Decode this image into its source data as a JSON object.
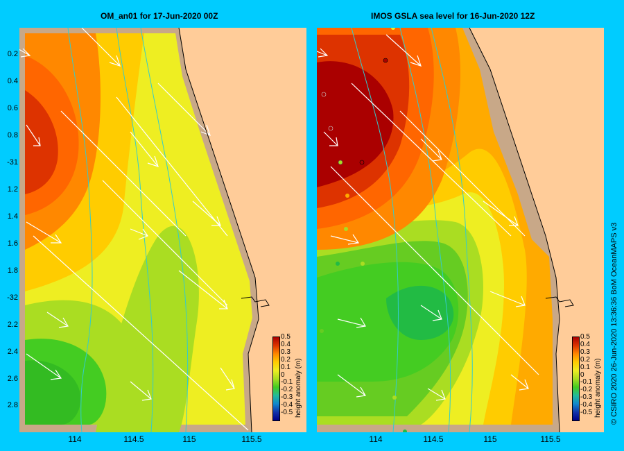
{
  "left_panel": {
    "title": "OM_an01  for 17-Jun-2020 00Z"
  },
  "right_panel": {
    "title": "IMOS  GSLA sea level   for 16-Jun-2020 12Z"
  },
  "y_axis_labels": [
    "0.2",
    "0.4",
    "0.6",
    "0.8",
    "-31",
    "1.2",
    "1.4",
    "1.6",
    "1.8",
    "-32",
    "2.2",
    "2.4",
    "2.6",
    "2.8"
  ],
  "x_axis_labels": [
    "114",
    "114.5",
    "115",
    "115.5"
  ],
  "colorbar": {
    "ticks": [
      "0.5",
      "0.4",
      "0.3",
      "0.2",
      "0.1",
      "0",
      "-0.1",
      "-0.2",
      "-0.3",
      "-0.4",
      "-0.5"
    ],
    "unit_label": "height anomaly (m)"
  },
  "credit": "© CSIRO 2020   26-Jun-2020 13:36:36 BoM OceanMAPS v3",
  "colors": {
    "background": "#00ccff",
    "land": "#ffcc99",
    "coast_shelf": "#c8a888",
    "isobath": "#33cccc",
    "arrows": "#ffffff"
  }
}
